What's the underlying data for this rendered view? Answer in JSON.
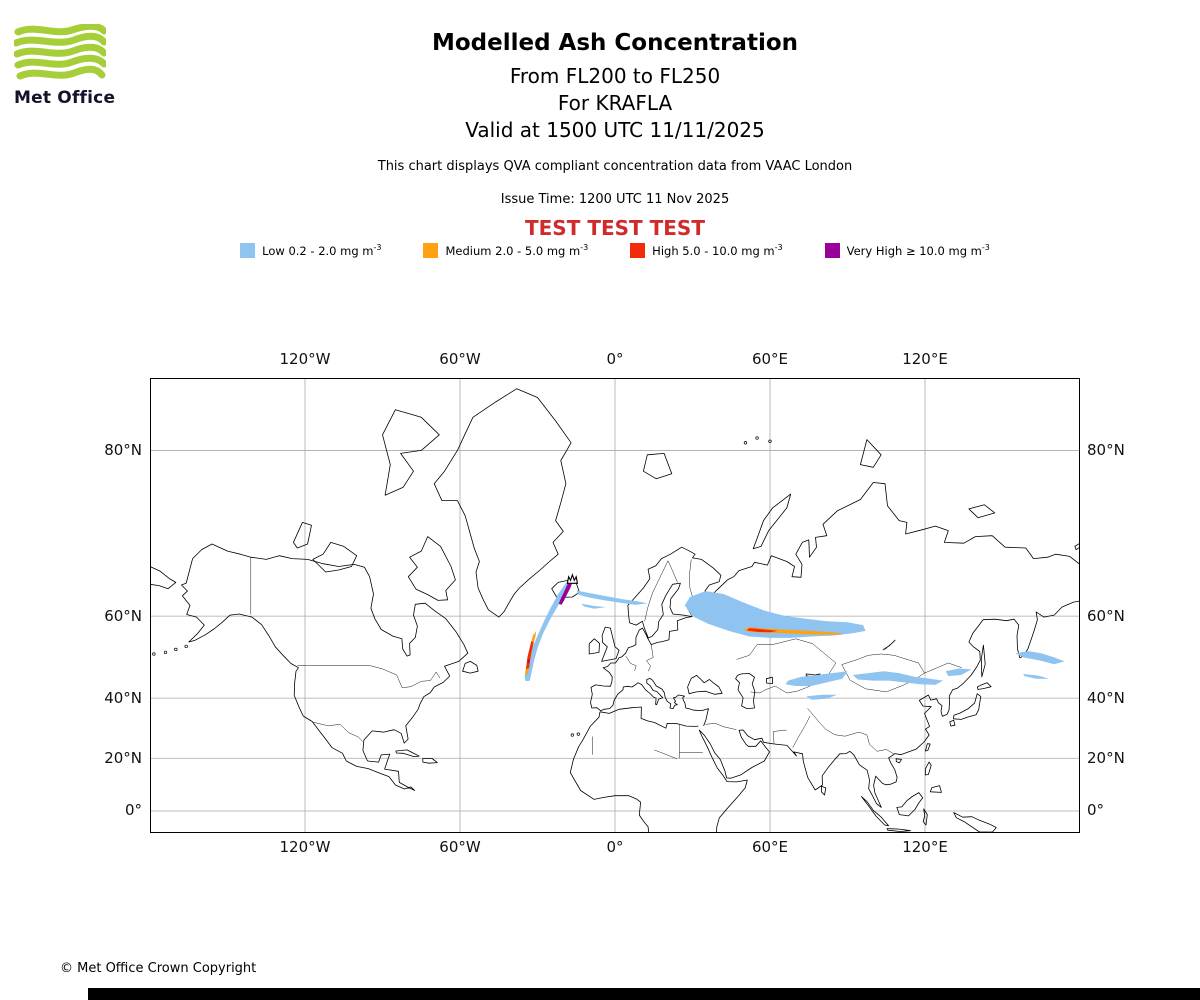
{
  "header": {
    "logo_text": "Met Office",
    "title": "Modelled Ash Concentration",
    "subtitle_fl": "From FL200 to FL250",
    "subtitle_volcano": "For KRAFLA",
    "subtitle_valid": "Valid at 1500 UTC 11/11/2025",
    "compliance_note": "This chart displays QVA compliant concentration data from VAAC London",
    "issue_time": "Issue Time: 1200 UTC 11 Nov 2025",
    "test_banner": "TEST TEST TEST",
    "test_banner_color": "#d02b2b",
    "logo_green": "#A6CE39"
  },
  "legend": {
    "items": [
      {
        "name": "low",
        "color": "#8EC4EF",
        "label": "Low 0.2 - 2.0 mg m",
        "sup": "-3"
      },
      {
        "name": "medium",
        "color": "#FFA113",
        "label": "Medium 2.0 - 5.0 mg m",
        "sup": "-3"
      },
      {
        "name": "high",
        "color": "#F22B0A",
        "label": "High 5.0 - 10.0 mg m",
        "sup": "-3"
      },
      {
        "name": "very_high",
        "color": "#990099",
        "label": "Very High ≥ 10.0 mg m",
        "sup": "-3"
      }
    ]
  },
  "map": {
    "top_axis": [
      "120°W",
      "60°W",
      "0°",
      "60°E",
      "120°E"
    ],
    "bottom_axis": [
      "120°W",
      "60°W",
      "0°",
      "60°E",
      "120°E"
    ],
    "left_axis": [
      "80°N",
      "60°N",
      "40°N",
      "20°N",
      "0°"
    ],
    "right_axis": [
      "80°N",
      "60°N",
      "40°N",
      "20°N",
      "0°"
    ],
    "volcano": {
      "name": "KRAFLA",
      "lon": -16.5,
      "lat": 66.4
    },
    "plumes": [
      {
        "category": "low",
        "points": [
          [
            -18.8,
            65.9
          ],
          [
            -22,
            64
          ],
          [
            -25,
            61.5
          ],
          [
            -27.5,
            59
          ],
          [
            -30,
            56
          ],
          [
            -32.5,
            52.5
          ],
          [
            -34.2,
            49
          ],
          [
            -35,
            46.2
          ],
          [
            -34.6,
            44.8
          ],
          [
            -33,
            45
          ],
          [
            -32.2,
            47.5
          ],
          [
            -31.2,
            50.5
          ],
          [
            -29.8,
            53.5
          ],
          [
            -27.8,
            56.5
          ],
          [
            -25,
            59.5
          ],
          [
            -22,
            62
          ],
          [
            -19,
            64
          ],
          [
            -16.8,
            65.4
          ]
        ]
      },
      {
        "category": "low",
        "points": [
          [
            -15,
            64.6
          ],
          [
            -9,
            64.1
          ],
          [
            -3,
            63.6
          ],
          [
            3,
            63.1
          ],
          [
            8,
            62.8
          ],
          [
            12.5,
            62.4
          ],
          [
            8,
            62.1
          ],
          [
            2,
            62.5
          ],
          [
            -4,
            62.9
          ],
          [
            -10,
            63.4
          ],
          [
            -14.2,
            63.9
          ]
        ]
      },
      {
        "category": "low",
        "points": [
          [
            -13,
            62.3
          ],
          [
            -8,
            61.9
          ],
          [
            -3.5,
            61.7
          ],
          [
            -8,
            61.4
          ],
          [
            -12,
            61.8
          ]
        ]
      },
      {
        "category": "low",
        "points": [
          [
            27,
            62
          ],
          [
            30,
            60
          ],
          [
            36,
            58.5
          ],
          [
            44,
            57
          ],
          [
            52,
            55.8
          ],
          [
            60,
            55.5
          ],
          [
            68,
            55.5
          ],
          [
            76,
            55.8
          ],
          [
            84,
            56
          ],
          [
            92,
            56.5
          ],
          [
            97,
            57
          ],
          [
            96,
            58.2
          ],
          [
            90,
            58.8
          ],
          [
            82,
            59
          ],
          [
            74,
            59.5
          ],
          [
            66,
            60
          ],
          [
            58,
            61
          ],
          [
            50,
            62.5
          ],
          [
            42,
            64
          ],
          [
            35,
            64.5
          ],
          [
            29,
            63.5
          ]
        ]
      },
      {
        "category": "low",
        "points": [
          [
            66,
            44
          ],
          [
            70,
            43.5
          ],
          [
            76,
            43.5
          ],
          [
            82,
            44.5
          ],
          [
            88,
            45.5
          ],
          [
            90,
            47.5
          ],
          [
            84,
            47
          ],
          [
            78,
            46.5
          ],
          [
            72,
            46
          ],
          [
            67,
            45
          ]
        ]
      },
      {
        "category": "low",
        "points": [
          [
            92,
            46.5
          ],
          [
            98,
            47
          ],
          [
            104,
            47.5
          ],
          [
            110,
            47
          ],
          [
            116,
            46
          ],
          [
            122,
            45.5
          ],
          [
            127,
            45
          ],
          [
            124,
            43.8
          ],
          [
            118,
            44
          ],
          [
            112,
            44.5
          ],
          [
            106,
            45
          ],
          [
            100,
            45
          ],
          [
            94,
            45.3
          ]
        ]
      },
      {
        "category": "low",
        "points": [
          [
            128,
            47.5
          ],
          [
            133,
            48.2
          ],
          [
            138,
            48
          ],
          [
            134,
            46.5
          ],
          [
            129,
            46.2
          ]
        ]
      },
      {
        "category": "low",
        "points": [
          [
            74,
            40.5
          ],
          [
            80,
            41
          ],
          [
            86,
            41
          ],
          [
            82,
            39.8
          ],
          [
            76,
            39.5
          ]
        ]
      },
      {
        "category": "low",
        "points": [
          [
            155,
            52
          ],
          [
            160,
            52.5
          ],
          [
            165,
            52
          ],
          [
            170,
            51
          ],
          [
            174,
            50
          ],
          [
            170,
            49.3
          ],
          [
            164,
            50.3
          ],
          [
            158,
            51
          ]
        ]
      },
      {
        "category": "low",
        "points": [
          [
            158,
            46.8
          ],
          [
            164,
            46.3
          ],
          [
            168,
            45.5
          ],
          [
            163,
            45.5
          ],
          [
            158.5,
            46.2
          ]
        ]
      },
      {
        "category": "medium",
        "points": [
          [
            -30.5,
            57
          ],
          [
            -31.8,
            56
          ],
          [
            -33.5,
            52
          ],
          [
            -34.5,
            48.5
          ],
          [
            -34.8,
            46.5
          ],
          [
            -33.8,
            46.8
          ],
          [
            -33,
            49.5
          ],
          [
            -32,
            53
          ],
          [
            -30.8,
            55.8
          ]
        ]
      },
      {
        "category": "medium",
        "points": [
          [
            50,
            57.3
          ],
          [
            52,
            56.8
          ],
          [
            58,
            56.6
          ],
          [
            66,
            56.5
          ],
          [
            74,
            56.3
          ],
          [
            82,
            56.2
          ],
          [
            88,
            56.2
          ],
          [
            87,
            56.5
          ],
          [
            82,
            56.8
          ],
          [
            76,
            57
          ],
          [
            70,
            57.2
          ],
          [
            64,
            57.3
          ],
          [
            58,
            57.5
          ],
          [
            52,
            57.8
          ]
        ]
      },
      {
        "category": "high",
        "points": [
          [
            -31.5,
            54.5
          ],
          [
            -32.4,
            54.8
          ],
          [
            -33.9,
            51
          ],
          [
            -34.4,
            48
          ],
          [
            -33.3,
            48.3
          ],
          [
            -32.6,
            51.5
          ]
        ]
      },
      {
        "category": "high",
        "points": [
          [
            51,
            57.1
          ],
          [
            55,
            56.8
          ],
          [
            60,
            56.7
          ],
          [
            63,
            57
          ],
          [
            60,
            57.2
          ],
          [
            56,
            57.4
          ],
          [
            52,
            57.6
          ]
        ]
      },
      {
        "category": "very_high",
        "points": [
          [
            -17.5,
            66.3
          ],
          [
            -18.6,
            65.4
          ],
          [
            -19.8,
            64.3
          ],
          [
            -20.9,
            63.3
          ],
          [
            -21.8,
            62.3
          ],
          [
            -20.7,
            62.1
          ],
          [
            -19.7,
            62.9
          ],
          [
            -18.6,
            63.9
          ],
          [
            -17.3,
            65
          ],
          [
            -16.4,
            66
          ]
        ]
      },
      {
        "category": "very_high",
        "points": [
          [
            -33.1,
            49.9
          ],
          [
            -33.7,
            49.4
          ],
          [
            -33.9,
            50.2
          ],
          [
            -33.2,
            50.6
          ]
        ]
      }
    ]
  },
  "footer": {
    "copyright": "© Met Office Crown Copyright"
  }
}
